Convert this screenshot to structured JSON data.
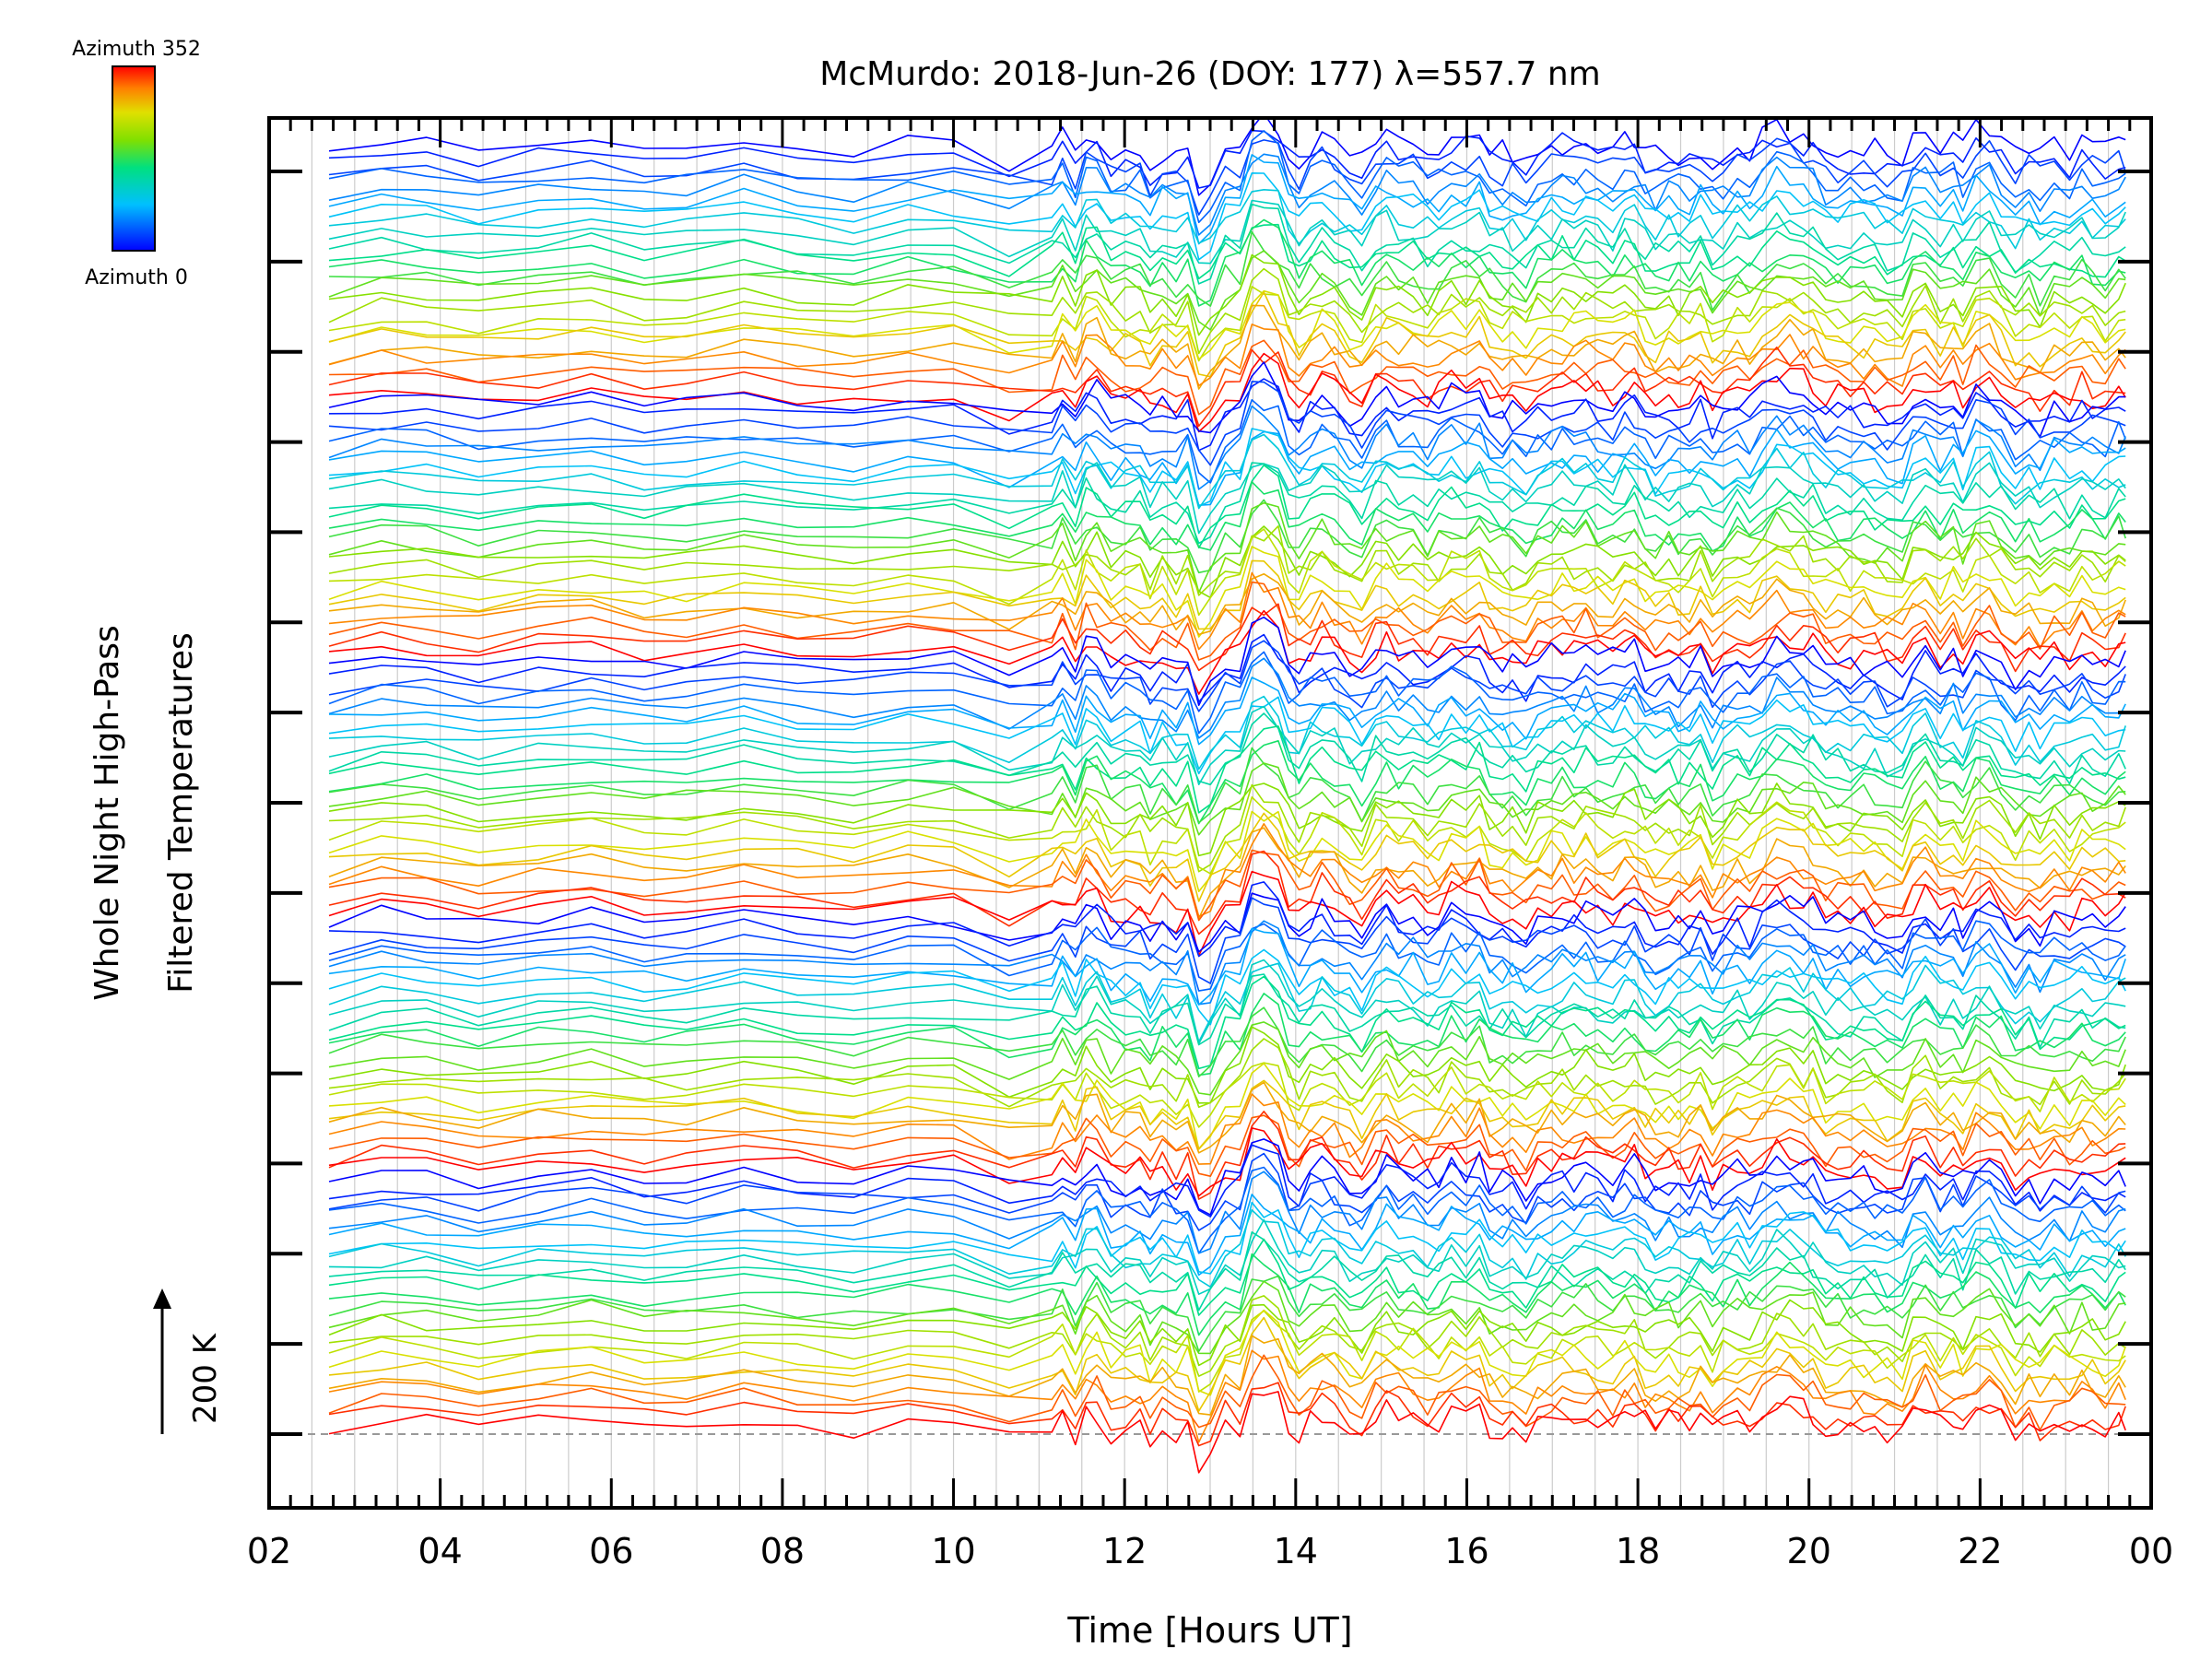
{
  "chart_data": {
    "type": "line",
    "title": "McMurdo: 2018-Jun-26 (DOY: 177) λ=557.7 nm",
    "xlabel": "Time [Hours UT]",
    "ylabel_line1": "Whole Night High-Pass",
    "ylabel_line2": "Filtered Temperatures",
    "scale_label": "200 K",
    "colorbar": {
      "top_label": "Azimuth 352",
      "bottom_label": "Azimuth 0",
      "colormap": "rainbow (blue → cyan → green → yellow → red)",
      "min": 0,
      "max": 352
    },
    "xlim": [
      2,
      24
    ],
    "x_ticks": [
      "02",
      "04",
      "06",
      "08",
      "10",
      "12",
      "14",
      "16",
      "18",
      "20",
      "22",
      "00"
    ],
    "x_tick_values": [
      2,
      4,
      6,
      8,
      10,
      12,
      14,
      16,
      18,
      20,
      22,
      24
    ],
    "x_minor_tick_step": 0.25,
    "gridlines_x": "every 0.5 h, light grey",
    "y_ticks_right_count": 15,
    "baseline": "dashed grey at bottom tick",
    "series_count": 120,
    "series_offset_note": "stacked traces, one per azimuth, colored by azimuth",
    "x_range_data": [
      2.7,
      23.7
    ]
  },
  "colors": {
    "background": "#ffffff",
    "axis": "#000000",
    "grid": "#cccccc",
    "baseline": "#999999"
  }
}
